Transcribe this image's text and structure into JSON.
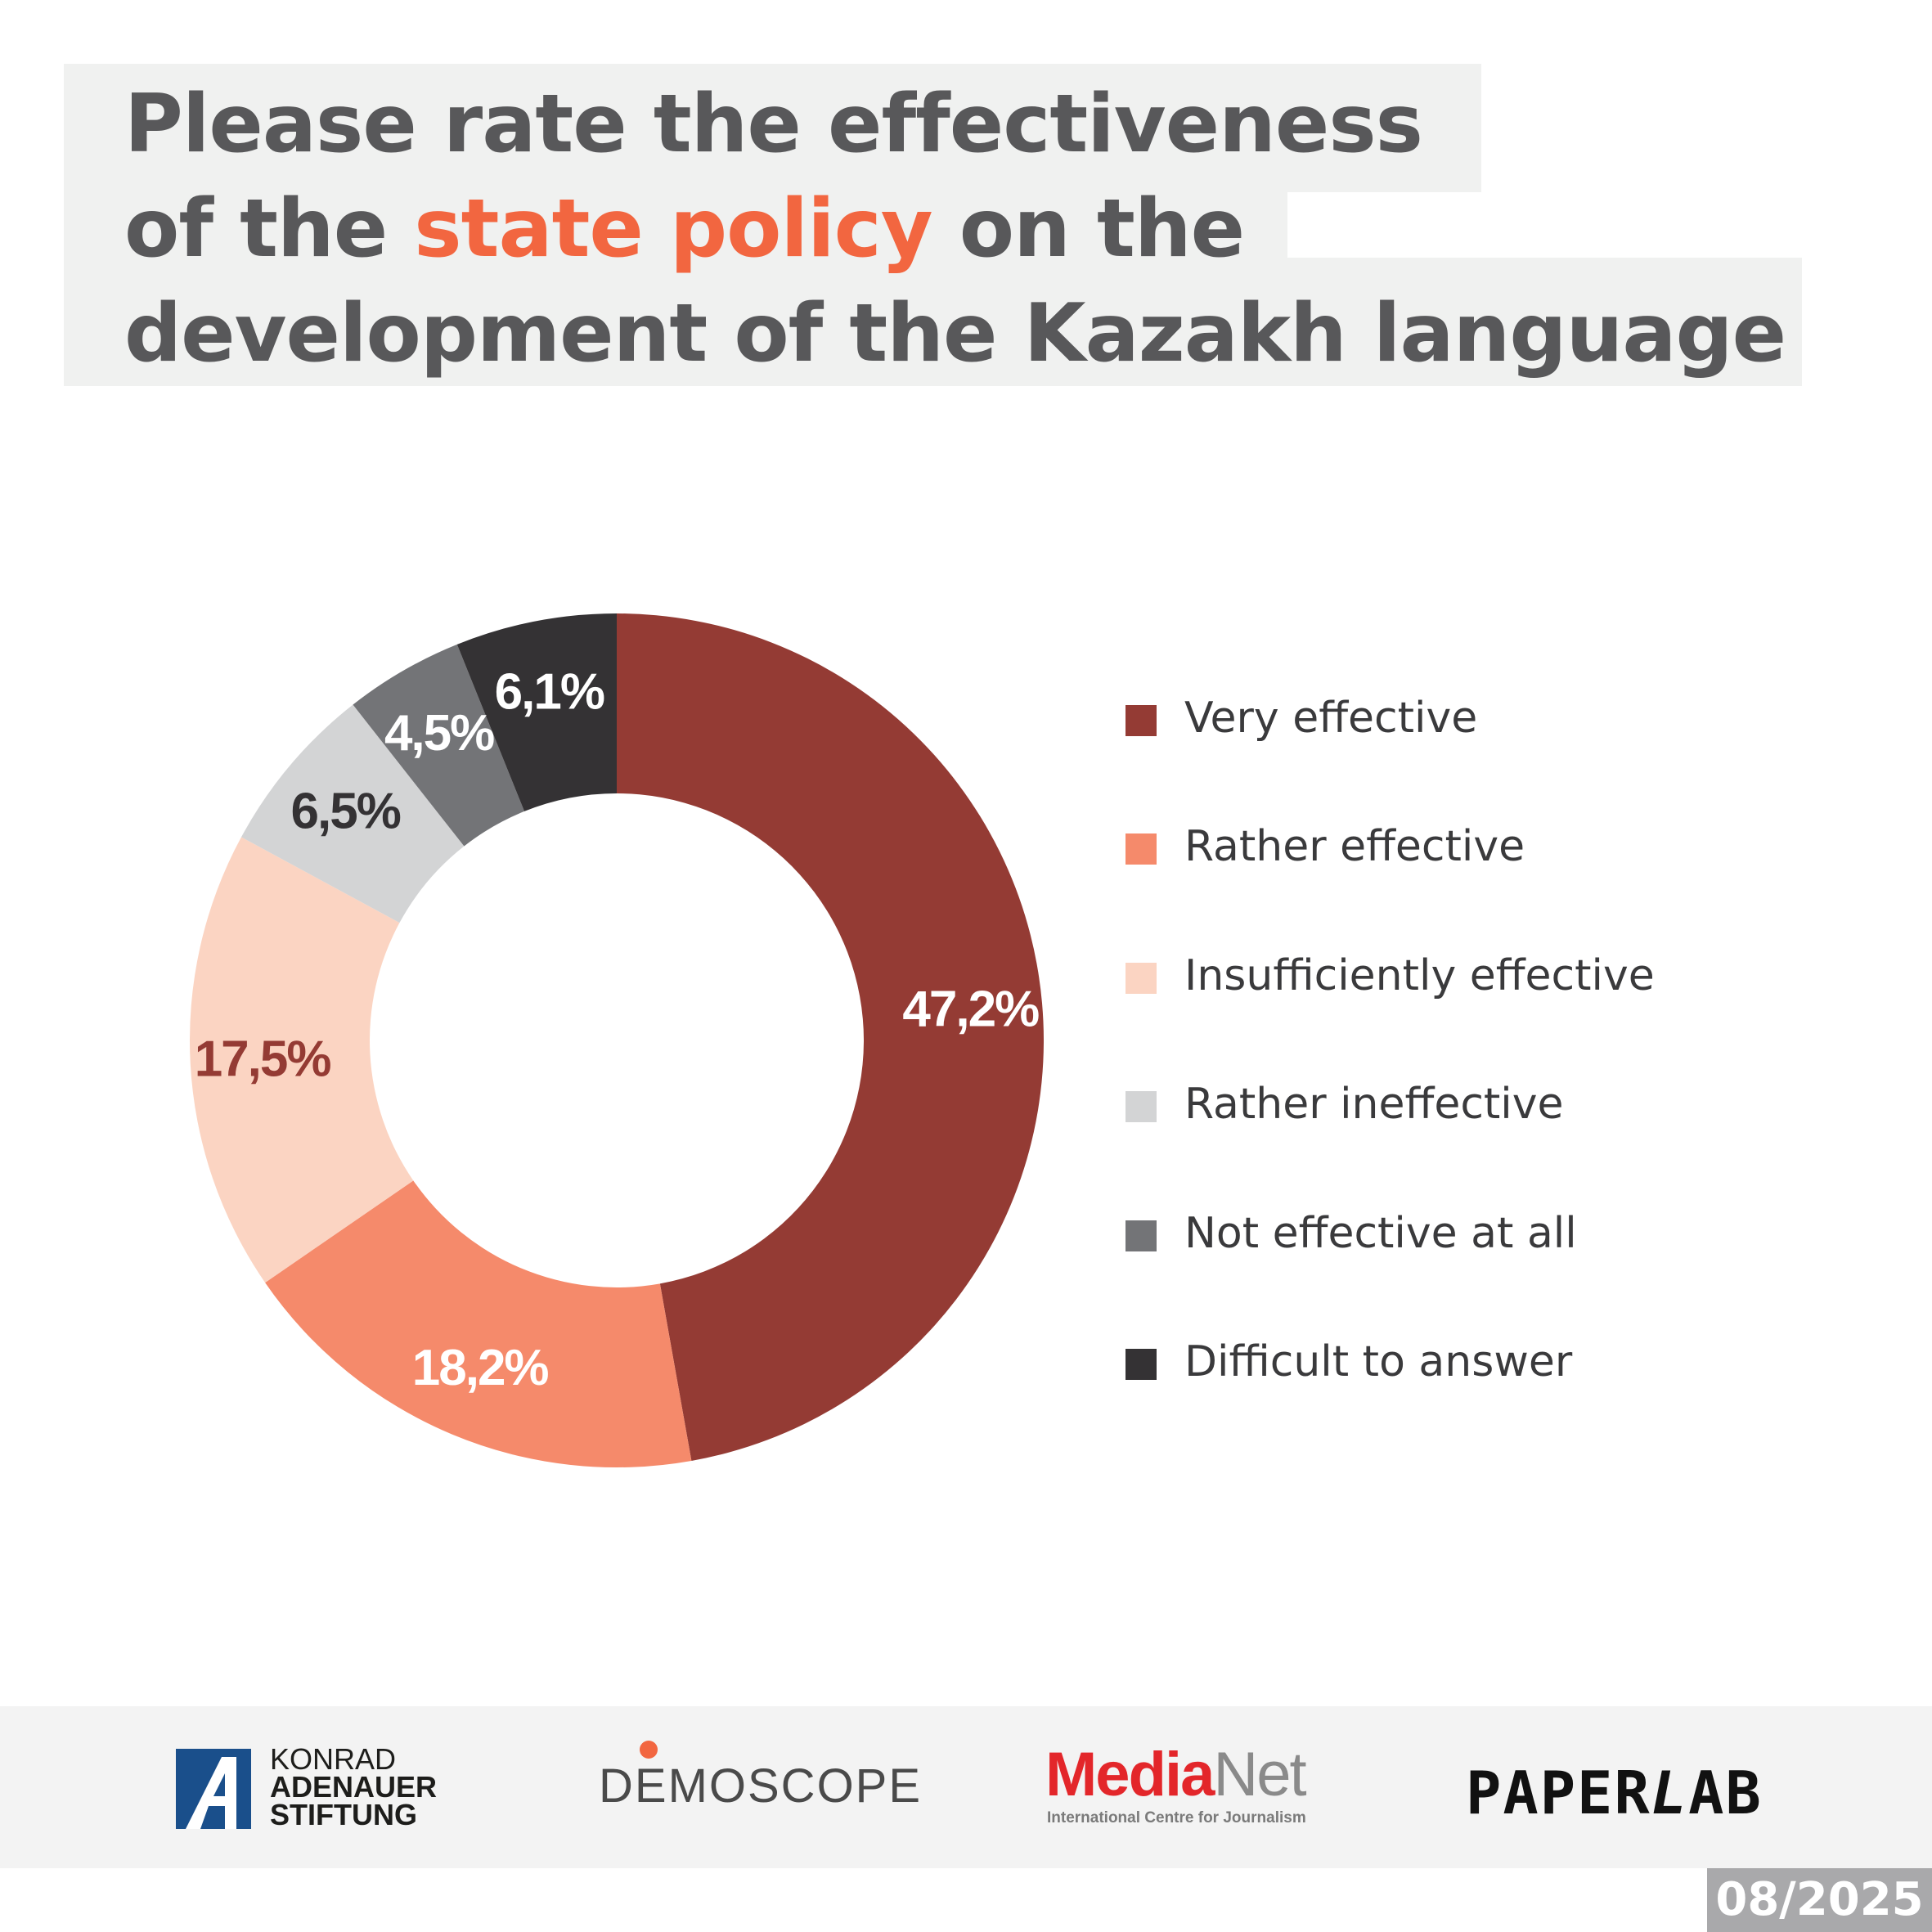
{
  "title": {
    "line1": "Please rate the effectiveness",
    "line2_before": "of the ",
    "line2_accent": "state policy",
    "line2_after": " on the",
    "line3": "development of the Kazakh language"
  },
  "colors": {
    "accent": "#f26640",
    "title_text": "#58585a",
    "title_background": "#f0f1f0"
  },
  "chart_data": {
    "type": "pie",
    "donut": true,
    "legend_position": "right",
    "categories": [
      "Very effective",
      "Rather effective",
      "Insufficiently effective",
      "Rather ineffective",
      "Not effective at all",
      "Difficult to answer"
    ],
    "values": [
      47.2,
      18.2,
      17.5,
      6.5,
      4.5,
      6.1
    ],
    "value_labels": [
      "47,2%",
      "18,2%",
      "17,5%",
      "6,5%",
      "4,5%",
      "6,1%"
    ],
    "colors": [
      "#943b34",
      "#f58a6b",
      "#fbd4c2",
      "#d3d4d5",
      "#737477",
      "#343234"
    ],
    "label_colors": [
      "#ffffff",
      "#ffffff",
      "#943b34",
      "#343234",
      "#ffffff",
      "#ffffff"
    ]
  },
  "footer": {
    "kas": {
      "line1": "KONRAD",
      "line2": "ADENAUER",
      "line3": "STIFTUNG"
    },
    "demoscope": "DEMOSCOPE",
    "medianet": {
      "media": "Media",
      "net": "Net",
      "subtitle": "International Centre for Journalism"
    },
    "paperlab": {
      "paper": "PAPER",
      "l": "L",
      "ab": "AB"
    }
  },
  "date": "08/2025"
}
